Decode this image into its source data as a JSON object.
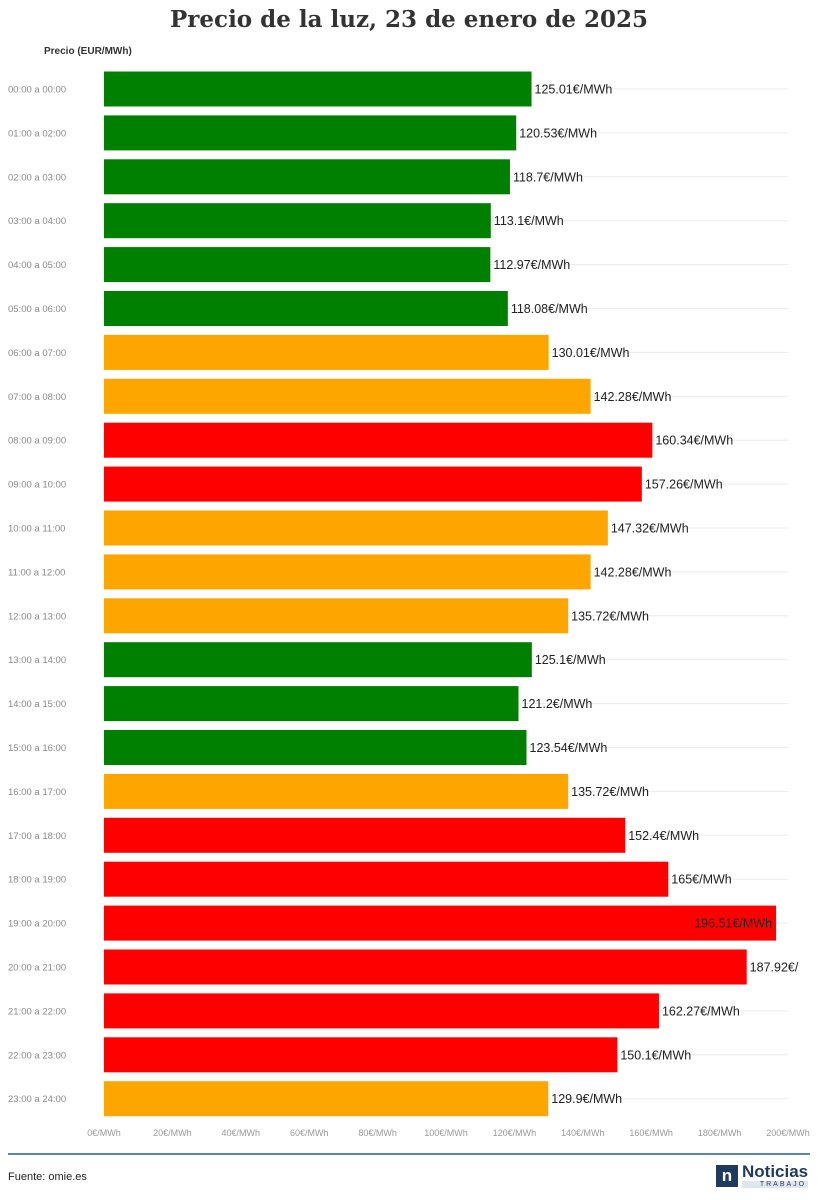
{
  "chart_data": {
    "type": "bar",
    "orientation": "horizontal",
    "title": "Precio de la luz, 23 de enero de 2025",
    "ylabel": "Precio (EUR/MWh)",
    "xlim": [
      0,
      200
    ],
    "x_ticks": [
      0,
      20,
      40,
      60,
      80,
      100,
      120,
      140,
      160,
      180,
      200
    ],
    "x_tick_labels": [
      "0€/MWh",
      "20€/MWh",
      "40€/MWh",
      "60€/MWh",
      "80€/MWh",
      "100€/MWh",
      "120€/MWh",
      "140€/MWh",
      "160€/MWh",
      "180€/MWh",
      "200€/MWh"
    ],
    "grid": true,
    "categories": [
      "00:00 a 00:00",
      "01:00 a 02:00",
      "02:00 a 03:00",
      "03:00 a 04:00",
      "04:00 a 05:00",
      "05:00 a 06:00",
      "06:00 a 07:00",
      "07:00 a 08:00",
      "08:00 a 09:00",
      "09:00 a 10:00",
      "10:00 a 11:00",
      "11:00 a 12:00",
      "12:00 a 13:00",
      "13:00 a 14:00",
      "14:00 a 15:00",
      "15:00 a 16:00",
      "16:00 a 17:00",
      "17:00 a 18:00",
      "18:00 a 19:00",
      "19:00 a 20:00",
      "20:00 a 21:00",
      "21:00 a 22:00",
      "22:00 a 23:00",
      "23:00 a 24:00"
    ],
    "values": [
      125.01,
      120.53,
      118.7,
      113.1,
      112.97,
      118.08,
      130.01,
      142.28,
      160.34,
      157.26,
      147.32,
      142.28,
      135.72,
      125.1,
      121.2,
      123.54,
      135.72,
      152.4,
      165,
      196.51,
      187.92,
      162.27,
      150.1,
      129.9
    ],
    "data_labels": [
      "125.01€/MWh",
      "120.53€/MWh",
      "118.7€/MWh",
      "113.1€/MWh",
      "112.97€/MWh",
      "118.08€/MWh",
      "130.01€/MWh",
      "142.28€/MWh",
      "160.34€/MWh",
      "157.26€/MWh",
      "147.32€/MWh",
      "142.28€/MWh",
      "135.72€/MWh",
      "125.1€/MWh",
      "121.2€/MWh",
      "123.54€/MWh",
      "135.72€/MWh",
      "152.4€/MWh",
      "165€/MWh",
      "196.51€/MWh",
      "187.92€/",
      "162.27€/MWh",
      "150.1€/MWh",
      "129.9€/MWh"
    ],
    "bar_colors": [
      "#008000",
      "#008000",
      "#008000",
      "#008000",
      "#008000",
      "#008000",
      "#FFA500",
      "#FFA500",
      "#FF0000",
      "#FF0000",
      "#FFA500",
      "#FFA500",
      "#FFA500",
      "#008000",
      "#008000",
      "#008000",
      "#FFA500",
      "#FF0000",
      "#FF0000",
      "#FF0000",
      "#FF0000",
      "#FF0000",
      "#FF0000",
      "#FFA500"
    ],
    "label_inside_colors": {
      "19:00 a 20:00": "#ffffff"
    }
  },
  "footer": {
    "source": "Fuente: omie.es",
    "logo_letter": "n",
    "logo_name": "Noticias",
    "logo_sub": "TRABAJO"
  }
}
